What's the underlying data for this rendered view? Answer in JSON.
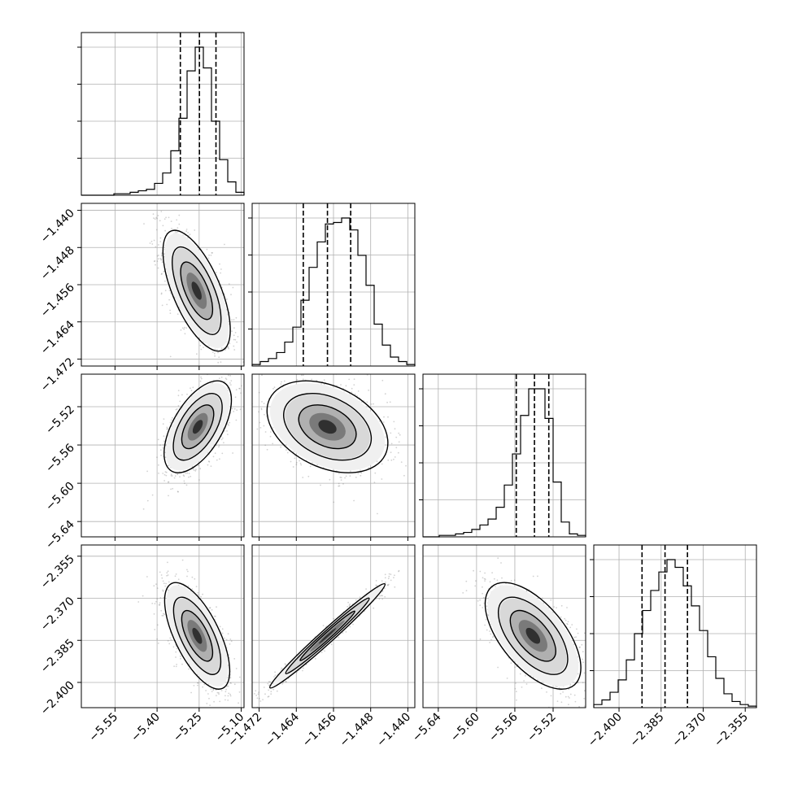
{
  "chart_data": {
    "type": "corner",
    "description_free": true,
    "variables": [
      {
        "range": [
          -5.67,
          -5.09
        ],
        "ticks": [
          {
            "v": -5.55,
            "label": "−5.55"
          },
          {
            "v": -5.4,
            "label": "−5.40"
          },
          {
            "v": -5.25,
            "label": "−5.25"
          },
          {
            "v": -5.1,
            "label": "−5.10"
          }
        ],
        "hist_edges_start": -5.67,
        "hist_bin_width": 0.029,
        "hist_counts": [
          0,
          0,
          0,
          0,
          1,
          1,
          2,
          3,
          4,
          8,
          15,
          30,
          52,
          84,
          100,
          86,
          50,
          24,
          9,
          2
        ],
        "quantiles": [
          -5.317,
          -5.249,
          -5.19
        ]
      },
      {
        "range": [
          -1.4735,
          -1.4385
        ],
        "ticks": [
          {
            "v": -1.44,
            "label": "−1.440"
          },
          {
            "v": -1.448,
            "label": "−1.448"
          },
          {
            "v": -1.456,
            "label": "−1.456"
          },
          {
            "v": -1.464,
            "label": "−1.464"
          },
          {
            "v": -1.472,
            "label": "−1.472"
          }
        ],
        "hist_edges_start": -1.4735,
        "hist_bin_width": 0.00175,
        "hist_counts": [
          1,
          3,
          5,
          9,
          16,
          26,
          44,
          66,
          83,
          95,
          96,
          99,
          91,
          74,
          54,
          28,
          14,
          6,
          3,
          1
        ],
        "quantiles": [
          -1.4625,
          -1.4573,
          -1.4523
        ]
      },
      {
        "range": [
          -5.656,
          -5.486
        ],
        "ticks": [
          {
            "v": -5.64,
            "label": "−5.64"
          },
          {
            "v": -5.6,
            "label": "−5.60"
          },
          {
            "v": -5.56,
            "label": "−5.56"
          },
          {
            "v": -5.52,
            "label": "−5.52"
          }
        ],
        "hist_edges_start": -5.656,
        "hist_bin_width": 0.0085,
        "hist_counts": [
          0,
          0,
          1,
          1,
          2,
          3,
          5,
          8,
          12,
          20,
          35,
          56,
          82,
          100,
          100,
          80,
          37,
          10,
          2,
          1
        ],
        "quantiles": [
          -5.5585,
          -5.5395,
          -5.5245
        ]
      },
      {
        "range": [
          -2.409,
          -2.351
        ],
        "ticks": [
          {
            "v": -2.4,
            "label": "−2.400"
          },
          {
            "v": -2.385,
            "label": "−2.385"
          },
          {
            "v": -2.37,
            "label": "−2.370"
          },
          {
            "v": -2.355,
            "label": "−2.355"
          }
        ],
        "hist_edges_start": -2.409,
        "hist_bin_width": 0.0029,
        "hist_counts": [
          2,
          5,
          10,
          18,
          31,
          48,
          63,
          76,
          88,
          96,
          91,
          79,
          66,
          50,
          33,
          19,
          9,
          4,
          2,
          1
        ],
        "quantiles": [
          -2.3918,
          -2.3836,
          -2.3756
        ]
      }
    ],
    "pairs": [
      {
        "row": 1,
        "col": 0,
        "mean": [
          -5.259,
          -1.4573
        ],
        "sd": [
          0.06,
          0.0065
        ],
        "rho": -0.65,
        "scatter": 1200
      },
      {
        "row": 2,
        "col": 0,
        "mean": [
          -5.255,
          -5.541
        ],
        "sd": [
          0.06,
          0.024
        ],
        "rho": 0.58,
        "scatter": 1000
      },
      {
        "row": 2,
        "col": 1,
        "mean": [
          -1.4573,
          -5.541
        ],
        "sd": [
          0.0065,
          0.024
        ],
        "rho": -0.35,
        "scatter": 1000
      },
      {
        "row": 3,
        "col": 0,
        "mean": [
          -5.257,
          -2.3834
        ],
        "sd": [
          0.058,
          0.0095
        ],
        "rho": -0.66,
        "scatter": 1000
      },
      {
        "row": 3,
        "col": 1,
        "mean": [
          -1.4573,
          -2.3834
        ],
        "sd": [
          0.0062,
          0.0093
        ],
        "rho": 0.985,
        "scatter": 900
      },
      {
        "row": 3,
        "col": 2,
        "mean": [
          -5.541,
          -2.3834
        ],
        "sd": [
          0.025,
          0.0095
        ],
        "rho": -0.6,
        "scatter": 1000
      }
    ],
    "contour_levels": [
      0.39,
      0.86,
      1.39
    ],
    "grid": true,
    "colors": {
      "axis": "#000000",
      "grid": "#b0b0b0",
      "scatter": "#7f7f7f",
      "density": "#000000",
      "quantile": "#000000"
    }
  }
}
